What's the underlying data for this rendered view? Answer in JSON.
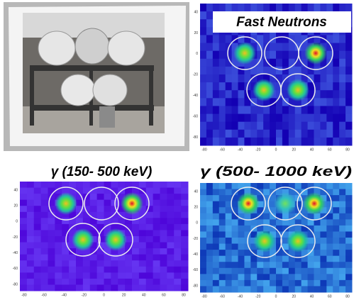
{
  "panels": [
    {
      "title": "Fast Neutrons",
      "y_ticks": [
        40,
        20,
        0,
        -20,
        -40,
        -60,
        -80
      ],
      "x_ticks": [
        -80,
        -60,
        -40,
        -20,
        0,
        20,
        40,
        60,
        80
      ]
    },
    {
      "title": "γ (150- 500 keV)",
      "y_ticks": [
        40,
        20,
        0,
        -20,
        -40,
        -60,
        -80
      ],
      "x_ticks": [
        -80,
        -60,
        -40,
        -20,
        0,
        20,
        40,
        60,
        80
      ]
    },
    {
      "title": "γ (500- 1000 keV)",
      "y_ticks": [
        40,
        20,
        0,
        -20,
        -40,
        -60,
        -80
      ],
      "x_ticks": [
        -80,
        -60,
        -40,
        -20,
        0,
        20,
        40,
        60,
        80
      ]
    }
  ]
}
